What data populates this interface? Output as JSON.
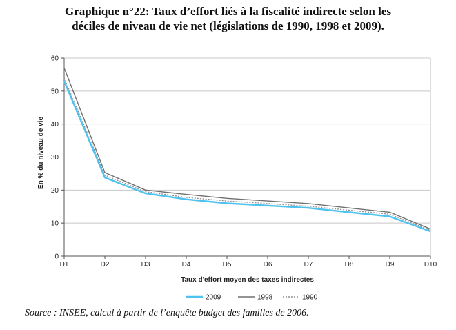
{
  "title_line1": "Graphique n°22: Taux d’effort liés à la fiscalité indirecte selon les",
  "title_line2": "déciles de niveau de vie net (législations de 1990, 1998 et 2009).",
  "source": "Source : INSEE, calcul à partir de l’enquête budget des familles de 2006.",
  "chart_data": {
    "type": "line",
    "xlabel": "Taux d'effort moyen des taxes indirectes",
    "ylabel": "En % du niveau de vie",
    "categories": [
      "D1",
      "D2",
      "D3",
      "D4",
      "D5",
      "D6",
      "D7",
      "D8",
      "D9",
      "D10"
    ],
    "ylim": [
      0,
      60
    ],
    "yticks": [
      0,
      10,
      20,
      30,
      40,
      50,
      60
    ],
    "grid": true,
    "legend_position": "bottom",
    "series": [
      {
        "name": "2009",
        "color": "#4fc3f0",
        "style": "solid",
        "values": [
          53,
          23.8,
          19,
          17.2,
          16,
          15.3,
          14.6,
          13.3,
          12,
          7.5
        ]
      },
      {
        "name": "1998",
        "color": "#707070",
        "style": "solid",
        "values": [
          57,
          25.3,
          20,
          18.7,
          17.5,
          16.7,
          15.9,
          14.6,
          13.3,
          8.2
        ]
      },
      {
        "name": "1990",
        "color": "#909090",
        "style": "dotted",
        "values": [
          54,
          24.5,
          19.5,
          17.8,
          16.7,
          15.9,
          15.1,
          13.9,
          12.7,
          7.8
        ]
      }
    ]
  }
}
